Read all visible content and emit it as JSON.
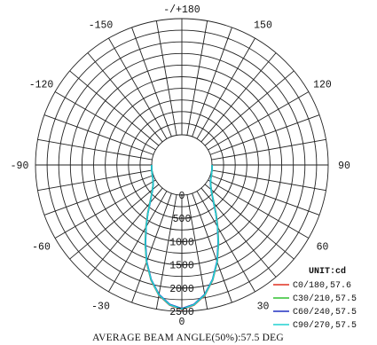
{
  "chart_data": {
    "type": "polar",
    "title": "",
    "angle_labels": [
      {
        "angle": 180,
        "text": "-/+180"
      },
      {
        "angle": 150,
        "text": "150"
      },
      {
        "angle": -150,
        "text": "-150"
      },
      {
        "angle": 120,
        "text": "120"
      },
      {
        "angle": -120,
        "text": "-120"
      },
      {
        "angle": 90,
        "text": "90"
      },
      {
        "angle": -90,
        "text": "-90"
      },
      {
        "angle": 60,
        "text": "60"
      },
      {
        "angle": -60,
        "text": "-60"
      },
      {
        "angle": 30,
        "text": "30"
      },
      {
        "angle": -30,
        "text": "-30"
      },
      {
        "angle": 0,
        "text": "0"
      }
    ],
    "radial_ticks": [
      0,
      500,
      1000,
      1500,
      2000,
      2500
    ],
    "radial_labels": [
      "0",
      "500",
      "1000",
      "1500",
      "2000",
      "2500"
    ],
    "rmax": 2500,
    "angle_step": 10,
    "unit_label": "UNIT:cd",
    "series": [
      {
        "name": "C0/180,57.6",
        "color": "#e03020",
        "angles": [
          0,
          5,
          10,
          15,
          20,
          25,
          30,
          35,
          40,
          45,
          50,
          55,
          60,
          65,
          70,
          75,
          80,
          85,
          90
        ],
        "values": [
          2460,
          2380,
          2200,
          1920,
          1580,
          1220,
          900,
          640,
          430,
          280,
          180,
          110,
          70,
          40,
          25,
          15,
          10,
          5,
          0
        ]
      },
      {
        "name": "C30/210,57.5",
        "color": "#30c030",
        "angles": [
          0,
          5,
          10,
          15,
          20,
          25,
          30,
          35,
          40,
          45,
          50,
          55,
          60,
          65,
          70,
          75,
          80,
          85,
          90
        ],
        "values": [
          2450,
          2370,
          2190,
          1910,
          1570,
          1210,
          890,
          630,
          420,
          275,
          175,
          108,
          68,
          40,
          25,
          15,
          10,
          5,
          0
        ]
      },
      {
        "name": "C60/240,57.5",
        "color": "#2030c0",
        "angles": [
          0,
          5,
          10,
          15,
          20,
          25,
          30,
          35,
          40,
          45,
          50,
          55,
          60,
          65,
          70,
          75,
          80,
          85,
          90
        ],
        "values": [
          2440,
          2360,
          2180,
          1900,
          1560,
          1200,
          885,
          625,
          415,
          272,
          172,
          106,
          66,
          38,
          24,
          14,
          9,
          4,
          0
        ]
      },
      {
        "name": "C90/270,57.5",
        "color": "#20d0d0",
        "angles": [
          0,
          5,
          10,
          15,
          20,
          25,
          30,
          35,
          40,
          45,
          50,
          55,
          60,
          65,
          70,
          75,
          80,
          85,
          90
        ],
        "values": [
          2450,
          2370,
          2190,
          1910,
          1570,
          1210,
          890,
          630,
          420,
          275,
          175,
          108,
          68,
          40,
          25,
          15,
          10,
          5,
          0
        ]
      }
    ],
    "footer": "AVERAGE BEAM ANGLE(50%):57.5 DEG",
    "grid": true,
    "legend_position": "bottom-right"
  }
}
